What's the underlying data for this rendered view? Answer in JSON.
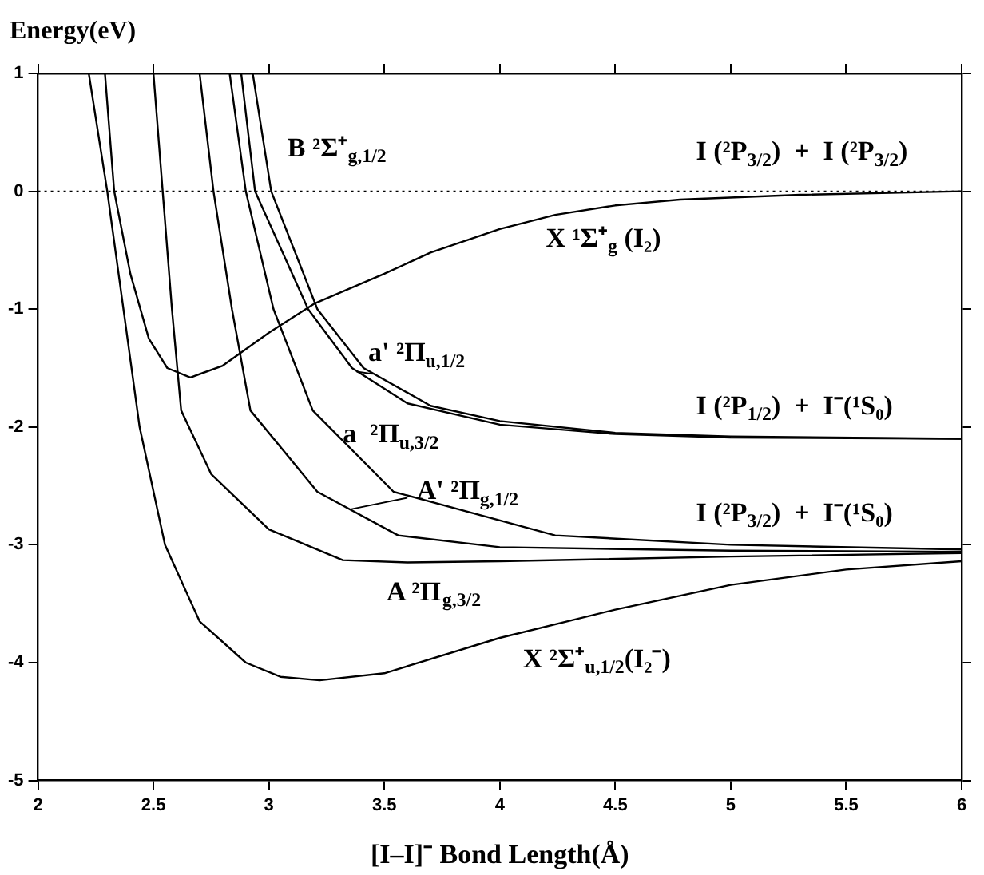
{
  "chart_data": {
    "type": "line",
    "ylabel": "Energy(eV)",
    "xlabel": "[I–I]⁻ Bond Length(Å)",
    "xlim": [
      2,
      6
    ],
    "xticks": [
      2,
      2.5,
      3,
      3.5,
      4,
      4.5,
      5,
      5.5,
      6
    ],
    "ylim": [
      -5,
      1
    ],
    "yticks": [
      -5,
      -4,
      -3,
      -2,
      -1,
      0,
      1
    ],
    "marker": "none",
    "line_style": "solid",
    "legend": false,
    "series": [
      {
        "color": "#000000",
        "x": [
          2.22,
          2.3,
          2.37,
          2.44,
          2.55,
          2.7,
          2.9,
          3.05,
          3.22,
          3.5,
          4.0,
          4.5,
          5.0,
          5.5,
          6.0
        ],
        "values": [
          1,
          0,
          -1,
          -2,
          -3,
          -3.65,
          -4.0,
          -4.12,
          -4.15,
          -4.09,
          -3.79,
          -3.55,
          -3.34,
          -3.21,
          -3.14
        ]
      },
      {
        "color": "#000000",
        "x": [
          2.29,
          2.33,
          2.4,
          2.48,
          2.56,
          2.66,
          2.8,
          3.0,
          3.2,
          3.5,
          3.7,
          4.0,
          4.24,
          4.5,
          4.78,
          5.3,
          6.0
        ],
        "values": [
          1,
          0,
          -0.7,
          -1.25,
          -1.5,
          -1.58,
          -1.48,
          -1.2,
          -0.95,
          -0.7,
          -0.52,
          -0.32,
          -0.2,
          -0.12,
          -0.07,
          -0.03,
          0
        ]
      },
      {
        "color": "#000000",
        "x": [
          2.5,
          2.54,
          2.58,
          2.62,
          2.75,
          3.0,
          3.32,
          3.6,
          4.0,
          5.0,
          6.0
        ],
        "values": [
          1,
          0,
          -1,
          -1.86,
          -2.4,
          -2.87,
          -3.13,
          -3.15,
          -3.14,
          -3.1,
          -3.07
        ]
      },
      {
        "color": "#000000",
        "x": [
          2.7,
          2.76,
          2.84,
          2.92,
          3.21,
          3.56,
          4.0,
          5.0,
          6.0
        ],
        "values": [
          1,
          0,
          -1,
          -1.86,
          -2.55,
          -2.92,
          -3.02,
          -3.05,
          -3.06
        ]
      },
      {
        "color": "#000000",
        "x": [
          2.83,
          2.9,
          3.02,
          3.19,
          3.54,
          4.24,
          5.0,
          6.0
        ],
        "values": [
          1,
          0,
          -1,
          -1.86,
          -2.55,
          -2.92,
          -3.0,
          -3.04
        ]
      },
      {
        "color": "#000000",
        "x": [
          2.88,
          2.94,
          3.17,
          3.36,
          3.6,
          4.0,
          4.5,
          5.0,
          6.0
        ],
        "values": [
          1,
          0,
          -1,
          -1.5,
          -1.8,
          -1.98,
          -2.06,
          -2.09,
          -2.1
        ]
      },
      {
        "color": "#000000",
        "x": [
          2.93,
          3.01,
          3.21,
          3.41,
          3.7,
          4.0,
          4.5,
          5.0,
          6.0
        ],
        "values": [
          1,
          0,
          -1,
          -1.5,
          -1.82,
          -1.95,
          -2.05,
          -2.08,
          -2.1
        ]
      }
    ],
    "ref_lines": [
      {
        "axis": "y",
        "value": 0,
        "line_style": "dotted",
        "color": "#000000"
      }
    ],
    "annotations": [
      "B ²Σ⁺$_{g,1/2}$",
      "I (²P$_{3/2}$)  +  I (²P$_{3/2}$)",
      "X ¹Σ⁺$_{g}$ (I₂)",
      {
        "text": "a' ²Π$_{u,1/2}$",
        "x": 3.38,
        "y": -1.53
      },
      "I (²P$_{1/2}$)  +  I⁻(¹S₀)",
      "a  ²Π$_{u,3/2}$",
      {
        "text": "A' ²Π$_{g,1/2}$",
        "x": 3.35,
        "y": -2.7
      },
      "I (²P$_{3/2}$)  +  I⁻(¹S₀)",
      "A ²Π$_{g,3/2}$",
      "X ²Σ⁺$_{u,1/2}$(I₂⁻)"
    ]
  }
}
